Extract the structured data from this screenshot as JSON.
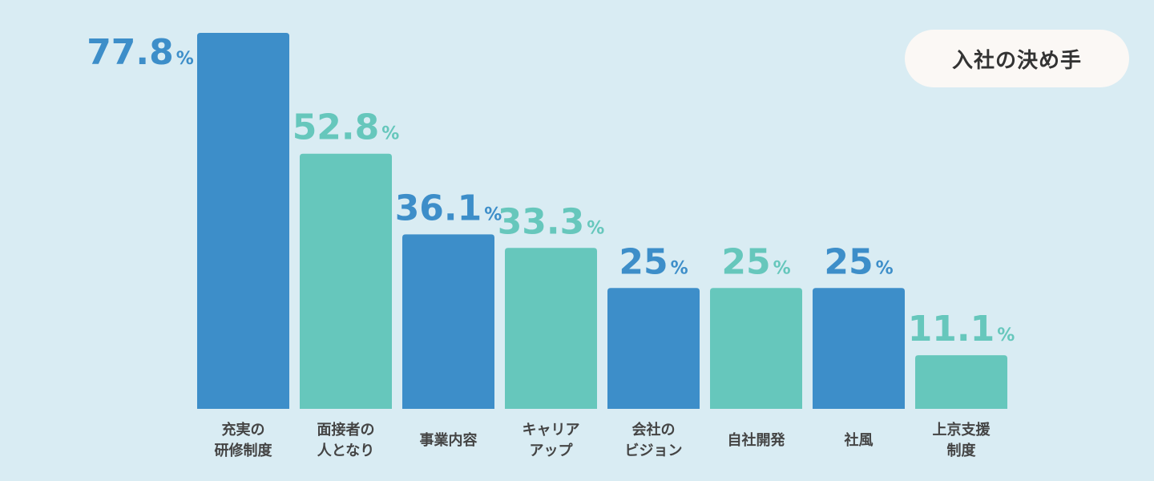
{
  "badge": {
    "label": "入社の決め手"
  },
  "colors": {
    "blue": "#3d8ec9",
    "teal": "#66c7bc",
    "background": "#d9ecf3"
  },
  "chart_data": {
    "type": "bar",
    "categories": [
      [
        "充実の",
        "研修制度"
      ],
      [
        "面接者の",
        "人となり"
      ],
      [
        "事業内容"
      ],
      [
        "キャリア",
        "アップ"
      ],
      [
        "会社の",
        "ビジョン"
      ],
      [
        "自社開発"
      ],
      [
        "社風"
      ],
      [
        "上京支援",
        "制度"
      ]
    ],
    "values": [
      77.8,
      52.8,
      36.1,
      33.3,
      25,
      25,
      25,
      11.1
    ],
    "value_labels": [
      "77.8",
      "52.8",
      "36.1",
      "33.3",
      "25",
      "25",
      "25",
      "11.1"
    ],
    "unit": "%",
    "bar_colors": [
      "#3d8ec9",
      "#66c7bc",
      "#3d8ec9",
      "#66c7bc",
      "#3d8ec9",
      "#66c7bc",
      "#3d8ec9",
      "#66c7bc"
    ],
    "ylim": [
      0,
      77.8
    ],
    "grid": false,
    "legend": "none"
  }
}
